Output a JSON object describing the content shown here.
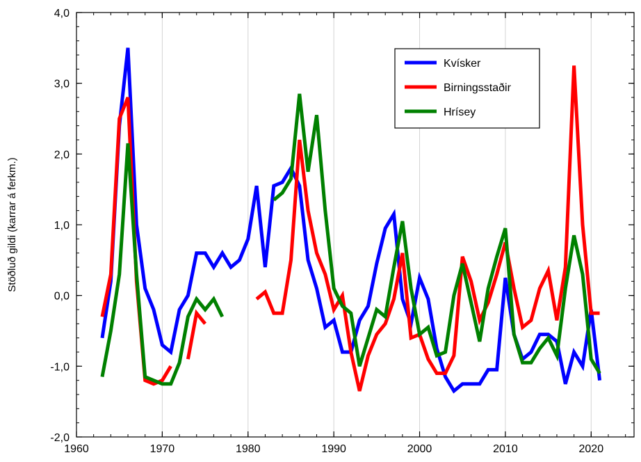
{
  "chart_data": {
    "type": "line",
    "title": "",
    "xlabel": "",
    "ylabel": "Stöðluð gildi (karrar á ferkm.)",
    "xlim": [
      1960,
      2025
    ],
    "ylim": [
      -2.0,
      4.0
    ],
    "x_ticks": [
      1960,
      1970,
      1980,
      1990,
      2000,
      2010,
      2020
    ],
    "x_tick_labels": [
      "1960",
      "1970",
      "1980",
      "1990",
      "2000",
      "2010",
      "2020"
    ],
    "y_ticks": [
      -2.0,
      -1.0,
      0.0,
      1.0,
      2.0,
      3.0,
      4.0
    ],
    "y_tick_labels": [
      "-2,0",
      "-1,0",
      "0,0",
      "1,0",
      "2,0",
      "3,0",
      "4,0"
    ],
    "grid": "vertical",
    "legend_position": "top-right",
    "series": [
      {
        "name": "Kvísker",
        "color": "#0000ff",
        "points": [
          [
            1963,
            -0.6
          ],
          [
            1964,
            0.2
          ],
          [
            1965,
            2.4
          ],
          [
            1966,
            3.5
          ],
          [
            1967,
            1.0
          ],
          [
            1968,
            0.1
          ],
          [
            1969,
            -0.2
          ],
          [
            1970,
            -0.7
          ],
          [
            1971,
            -0.8
          ],
          [
            1972,
            -0.2
          ],
          [
            1973,
            0.0
          ],
          [
            1974,
            0.6
          ],
          [
            1975,
            0.6
          ],
          [
            1976,
            0.4
          ],
          [
            1977,
            0.6
          ],
          [
            1978,
            0.4
          ],
          [
            1979,
            0.5
          ],
          [
            1980,
            0.8
          ],
          [
            1981,
            1.55
          ],
          [
            1982,
            0.4
          ],
          [
            1983,
            1.55
          ],
          [
            1984,
            1.6
          ],
          [
            1985,
            1.8
          ],
          [
            1986,
            1.55
          ],
          [
            1987,
            0.5
          ],
          [
            1988,
            0.1
          ],
          [
            1989,
            -0.45
          ],
          [
            1990,
            -0.35
          ],
          [
            1991,
            -0.8
          ],
          [
            1992,
            -0.8
          ],
          [
            1993,
            -0.35
          ],
          [
            1994,
            -0.15
          ],
          [
            1995,
            0.45
          ],
          [
            1996,
            0.95
          ],
          [
            1997,
            1.15
          ],
          [
            1998,
            -0.05
          ],
          [
            1999,
            -0.4
          ],
          [
            2000,
            0.25
          ],
          [
            2001,
            -0.05
          ],
          [
            2002,
            -0.75
          ],
          [
            2003,
            -1.15
          ],
          [
            2004,
            -1.35
          ],
          [
            2005,
            -1.25
          ],
          [
            2006,
            -1.25
          ],
          [
            2007,
            -1.25
          ],
          [
            2008,
            -1.05
          ],
          [
            2009,
            -1.05
          ],
          [
            2010,
            0.25
          ],
          [
            2011,
            -0.55
          ],
          [
            2012,
            -0.9
          ],
          [
            2013,
            -0.8
          ],
          [
            2014,
            -0.55
          ],
          [
            2015,
            -0.55
          ],
          [
            2016,
            -0.65
          ],
          [
            2017,
            -1.25
          ],
          [
            2018,
            -0.8
          ],
          [
            2019,
            -1.0
          ],
          [
            2020,
            -0.2
          ],
          [
            2021,
            -1.2
          ]
        ]
      },
      {
        "name": "Birningsstaðir",
        "color": "#ff0000",
        "points": [
          [
            1963,
            -0.3
          ],
          [
            1964,
            0.3
          ],
          [
            1965,
            2.5
          ],
          [
            1966,
            2.8
          ],
          [
            1967,
            0.2
          ],
          [
            1968,
            -1.2
          ],
          [
            1969,
            -1.25
          ],
          [
            1970,
            -1.2
          ],
          [
            1971,
            -1.0
          ],
          [
            1972,
            null
          ],
          [
            1973,
            -0.9
          ],
          [
            1974,
            -0.25
          ],
          [
            1975,
            -0.4
          ],
          [
            1976,
            null
          ],
          [
            1977,
            null
          ],
          [
            1978,
            null
          ],
          [
            1979,
            null
          ],
          [
            1980,
            null
          ],
          [
            1981,
            -0.05
          ],
          [
            1982,
            0.05
          ],
          [
            1983,
            -0.25
          ],
          [
            1984,
            -0.25
          ],
          [
            1985,
            0.5
          ],
          [
            1986,
            2.2
          ],
          [
            1987,
            1.2
          ],
          [
            1988,
            0.6
          ],
          [
            1989,
            0.3
          ],
          [
            1990,
            -0.2
          ],
          [
            1991,
            0.0
          ],
          [
            1992,
            -0.8
          ],
          [
            1993,
            -1.35
          ],
          [
            1994,
            -0.85
          ],
          [
            1995,
            -0.55
          ],
          [
            1996,
            -0.4
          ],
          [
            1997,
            -0.05
          ],
          [
            1998,
            0.6
          ],
          [
            1999,
            -0.6
          ],
          [
            2000,
            -0.55
          ],
          [
            2001,
            -0.9
          ],
          [
            2002,
            -1.1
          ],
          [
            2003,
            -1.1
          ],
          [
            2004,
            -0.85
          ],
          [
            2005,
            0.55
          ],
          [
            2006,
            0.2
          ],
          [
            2007,
            -0.35
          ],
          [
            2008,
            -0.1
          ],
          [
            2009,
            0.3
          ],
          [
            2010,
            0.75
          ],
          [
            2011,
            0.1
          ],
          [
            2012,
            -0.45
          ],
          [
            2013,
            -0.35
          ],
          [
            2014,
            0.1
          ],
          [
            2015,
            0.35
          ],
          [
            2016,
            -0.35
          ],
          [
            2017,
            0.4
          ],
          [
            2018,
            3.25
          ],
          [
            2019,
            1.0
          ],
          [
            2020,
            -0.25
          ],
          [
            2021,
            -0.25
          ]
        ]
      },
      {
        "name": "Hrísey",
        "color": "#008000",
        "points": [
          [
            1963,
            -1.15
          ],
          [
            1964,
            -0.5
          ],
          [
            1965,
            0.3
          ],
          [
            1966,
            2.15
          ],
          [
            1967,
            0.3
          ],
          [
            1968,
            -1.15
          ],
          [
            1969,
            -1.2
          ],
          [
            1970,
            -1.25
          ],
          [
            1971,
            -1.25
          ],
          [
            1972,
            -0.95
          ],
          [
            1973,
            -0.3
          ],
          [
            1974,
            -0.05
          ],
          [
            1975,
            -0.2
          ],
          [
            1976,
            -0.05
          ],
          [
            1977,
            -0.3
          ],
          [
            1978,
            null
          ],
          [
            1979,
            null
          ],
          [
            1980,
            null
          ],
          [
            1981,
            null
          ],
          [
            1982,
            null
          ],
          [
            1983,
            1.35
          ],
          [
            1984,
            1.45
          ],
          [
            1985,
            1.65
          ],
          [
            1986,
            2.85
          ],
          [
            1987,
            1.75
          ],
          [
            1988,
            2.55
          ],
          [
            1989,
            1.2
          ],
          [
            1990,
            0.1
          ],
          [
            1991,
            -0.15
          ],
          [
            1992,
            -0.25
          ],
          [
            1993,
            -1.0
          ],
          [
            1994,
            -0.6
          ],
          [
            1995,
            -0.2
          ],
          [
            1996,
            -0.3
          ],
          [
            1997,
            0.4
          ],
          [
            1998,
            1.05
          ],
          [
            1999,
            0.1
          ],
          [
            2000,
            -0.55
          ],
          [
            2001,
            -0.45
          ],
          [
            2002,
            -0.85
          ],
          [
            2003,
            -0.8
          ],
          [
            2004,
            0.0
          ],
          [
            2005,
            0.45
          ],
          [
            2006,
            -0.1
          ],
          [
            2007,
            -0.65
          ],
          [
            2008,
            0.1
          ],
          [
            2009,
            0.55
          ],
          [
            2010,
            0.95
          ],
          [
            2011,
            -0.55
          ],
          [
            2012,
            -0.95
          ],
          [
            2013,
            -0.95
          ],
          [
            2014,
            -0.75
          ],
          [
            2015,
            -0.6
          ],
          [
            2016,
            -0.85
          ],
          [
            2017,
            0.1
          ],
          [
            2018,
            0.85
          ],
          [
            2019,
            0.3
          ],
          [
            2020,
            -0.9
          ],
          [
            2021,
            -1.1
          ]
        ]
      }
    ]
  }
}
